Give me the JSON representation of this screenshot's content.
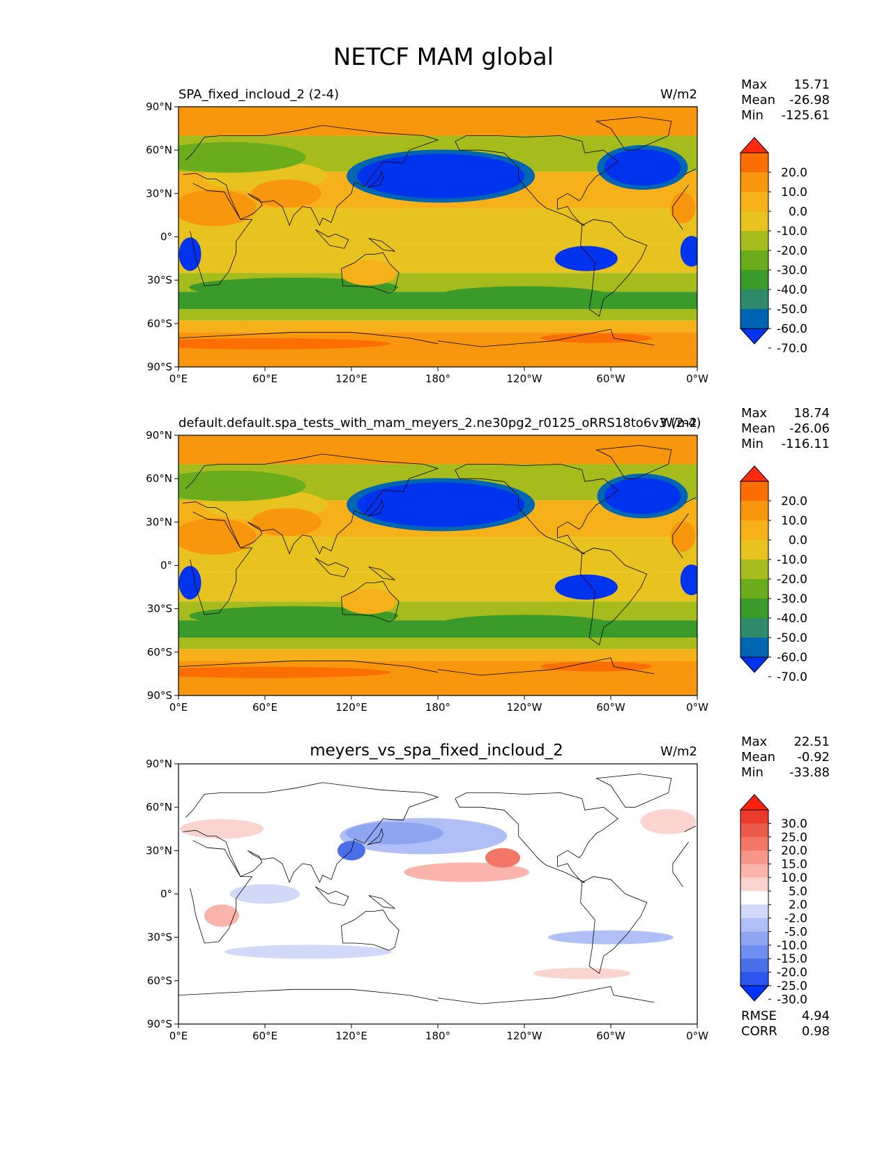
{
  "figure": {
    "title": "NETCF MAM global"
  },
  "colors": {
    "abs_levels": [
      "#0033ee",
      "#0066b3",
      "#2e8a6b",
      "#3a9a2a",
      "#6aac1c",
      "#a6bc1c",
      "#e8c21e",
      "#f5b01a",
      "#f8960e",
      "#fa6e04",
      "#ff2a10"
    ],
    "diff_levels": [
      "#0033ff",
      "#2b55ee",
      "#4a6ee8",
      "#6f8ef0",
      "#8ea6f2",
      "#b0c0f6",
      "#d0daf8",
      "#ffffff",
      "#fbd4d0",
      "#fab4ac",
      "#f79588",
      "#f27766",
      "#ec5a4a",
      "#ea3a2c",
      "#ff2010"
    ]
  },
  "chart_data": [
    {
      "type": "heatmap",
      "title_left": "SPA_fixed_incloud_2 (2-4)",
      "units": "W/m2",
      "stats": {
        "max_label": "Max",
        "max": "15.71",
        "mean_label": "Mean",
        "mean": "-26.98",
        "min_label": "Min",
        "min": "-125.61"
      },
      "colorbar_ticks": [
        "20.0",
        "10.0",
        "0.0",
        "-10.0",
        "-20.0",
        "-30.0",
        "-40.0",
        "-50.0",
        "-60.0",
        "-70.0"
      ],
      "xticks": [
        "0°E",
        "60°E",
        "120°E",
        "180°",
        "120°W",
        "60°W",
        "0°W"
      ],
      "yticks": [
        "90°N",
        "60°N",
        "30°N",
        "0°",
        "30°S",
        "60°S",
        "90°S"
      ],
      "xlim": [
        0,
        360
      ],
      "ylim": [
        -90,
        90
      ]
    },
    {
      "type": "heatmap",
      "title_left": "default.default.spa_tests_with_mam_meyers_2.ne30pg2_r0125_oRRS18to6v3 (2-4)",
      "units": "W/m2",
      "stats": {
        "max_label": "Max",
        "max": "18.74",
        "mean_label": "Mean",
        "mean": "-26.06",
        "min_label": "Min",
        "min": "-116.11"
      },
      "colorbar_ticks": [
        "20.0",
        "10.0",
        "0.0",
        "-10.0",
        "-20.0",
        "-30.0",
        "-40.0",
        "-50.0",
        "-60.0",
        "-70.0"
      ],
      "xticks": [
        "0°E",
        "60°E",
        "120°E",
        "180°",
        "120°W",
        "60°W",
        "0°W"
      ],
      "yticks": [
        "90°N",
        "60°N",
        "30°N",
        "0°",
        "30°S",
        "60°S",
        "90°S"
      ],
      "xlim": [
        0,
        360
      ],
      "ylim": [
        -90,
        90
      ]
    },
    {
      "type": "heatmap",
      "title_center": "meyers_vs_spa_fixed_incloud_2",
      "units": "W/m2",
      "stats": {
        "max_label": "Max",
        "max": "22.51",
        "mean_label": "Mean",
        "mean": "-0.92",
        "min_label": "Min",
        "min": "-33.88"
      },
      "colorbar_ticks": [
        "30.0",
        "25.0",
        "20.0",
        "15.0",
        "10.0",
        "5.0",
        "2.0",
        "-2.0",
        "-5.0",
        "-10.0",
        "-15.0",
        "-20.0",
        "-25.0",
        "-30.0"
      ],
      "xticks": [
        "0°E",
        "60°E",
        "120°E",
        "180°",
        "120°W",
        "60°W",
        "0°W"
      ],
      "yticks": [
        "90°N",
        "60°N",
        "30°N",
        "0°",
        "30°S",
        "60°S",
        "90°S"
      ],
      "xlim": [
        0,
        360
      ],
      "ylim": [
        -90,
        90
      ],
      "rmse_label": "RMSE",
      "rmse": "4.94",
      "corr_label": "CORR",
      "corr": "0.98"
    }
  ]
}
